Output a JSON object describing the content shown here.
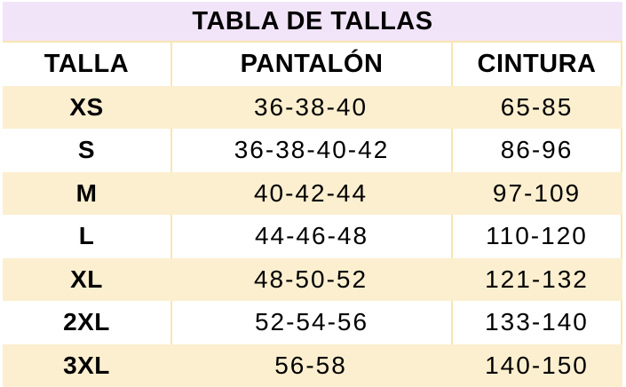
{
  "chart_data": {
    "type": "table",
    "title": "TABLA DE TALLAS",
    "columns": [
      "TALLA",
      "PANTALÓN",
      "CINTURA"
    ],
    "rows": [
      [
        "XS",
        "36-38-40",
        "65-85"
      ],
      [
        "S",
        "36-38-40-42",
        "86-96"
      ],
      [
        "M",
        "40-42-44",
        "97-109"
      ],
      [
        "L",
        "44-46-48",
        "110-120"
      ],
      [
        "XL",
        "48-50-52",
        "121-132"
      ],
      [
        "2XL",
        "52-54-56",
        "133-140"
      ],
      [
        "3XL",
        "56-58",
        "140-150"
      ]
    ],
    "layout": {
      "row_striping": "alternating cream/white starting cream at XS",
      "title_merged_across_columns": true
    }
  },
  "colors": {
    "title_bg": "#f2e4f8",
    "stripe_bg": "#fcefcf",
    "row_bg": "#ffffff",
    "gridline": "#fae5ae",
    "text": "#000000"
  }
}
